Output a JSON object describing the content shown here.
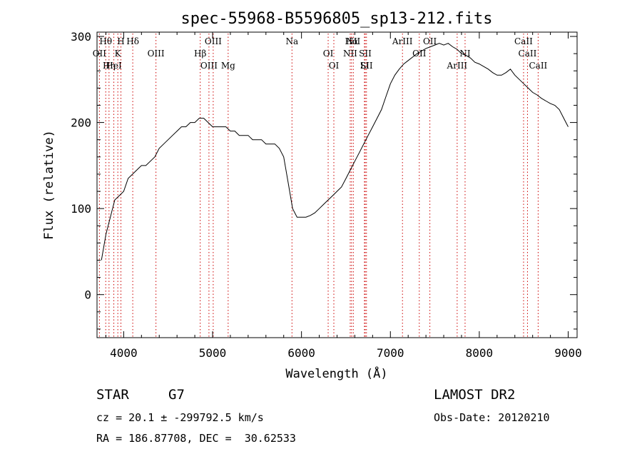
{
  "chart_data": {
    "type": "line",
    "title": "spec-55968-B5596805_sp13-212.fits",
    "xlabel": "Wavelength (Å)",
    "ylabel": "Flux (relative)",
    "xlim": [
      3700,
      9100
    ],
    "ylim": [
      -50,
      305
    ],
    "xticks": [
      4000,
      5000,
      6000,
      7000,
      8000,
      9000
    ],
    "yticks": [
      0,
      100,
      200,
      300
    ],
    "grid": false,
    "line_color": "#000000",
    "marker_color": "#cc0000",
    "series": [
      {
        "x": [
          3750,
          3800,
          3850,
          3900,
          3950,
          4000,
          4050,
          4100,
          4150,
          4200,
          4250,
          4300,
          4350,
          4400,
          4450,
          4500,
          4550,
          4600,
          4650,
          4700,
          4750,
          4800,
          4850,
          4900,
          4950,
          5000,
          5050,
          5100,
          5150,
          5200,
          5250,
          5300,
          5350,
          5400,
          5450,
          5500,
          5550,
          5600,
          5650,
          5700,
          5750,
          5800,
          5850,
          5900,
          5950,
          6000,
          6050,
          6100,
          6150,
          6200,
          6250,
          6300,
          6350,
          6400,
          6450,
          6500,
          6550,
          6600,
          6650,
          6700,
          6750,
          6800,
          6850,
          6900,
          6950,
          7000,
          7050,
          7100,
          7150,
          7200,
          7250,
          7300,
          7350,
          7400,
          7450,
          7500,
          7550,
          7600,
          7650,
          7700,
          7750,
          7800,
          7850,
          7900,
          7950,
          8000,
          8050,
          8100,
          8150,
          8200,
          8250,
          8300,
          8350,
          8400,
          8450,
          8500,
          8550,
          8600,
          8650,
          8700,
          8750,
          8800,
          8850,
          8900,
          8950,
          9000
        ],
        "y": [
          40,
          70,
          90,
          110,
          115,
          120,
          135,
          140,
          145,
          150,
          150,
          155,
          160,
          170,
          175,
          180,
          185,
          190,
          195,
          195,
          200,
          200,
          205,
          205,
          200,
          195,
          195,
          195,
          195,
          190,
          190,
          185,
          185,
          185,
          180,
          180,
          180,
          175,
          175,
          175,
          170,
          160,
          130,
          100,
          90,
          90,
          90,
          92,
          95,
          100,
          105,
          110,
          115,
          120,
          125,
          135,
          145,
          155,
          165,
          175,
          185,
          195,
          205,
          215,
          230,
          245,
          255,
          262,
          268,
          272,
          276,
          280,
          283,
          286,
          288,
          290,
          292,
          290,
          292,
          288,
          285,
          280,
          278,
          275,
          270,
          268,
          265,
          262,
          258,
          255,
          255,
          258,
          262,
          255,
          250,
          245,
          240,
          235,
          232,
          228,
          225,
          222,
          220,
          215,
          205,
          195
        ]
      }
    ],
    "lines": [
      {
        "label": "Hθ",
        "x": 3798
      },
      {
        "label": "K",
        "x": 3934
      },
      {
        "label": "HeI",
        "x": 3889
      },
      {
        "label": "Hδ",
        "x": 4102
      },
      {
        "label": "OII",
        "x": 3727
      },
      {
        "label": "Hη",
        "x": 3835
      },
      {
        "label": "H",
        "x": 3969
      },
      {
        "label": "OIII",
        "x": 4363
      },
      {
        "label": "OIII",
        "x": 4959
      },
      {
        "label": "OIII",
        "x": 5007
      },
      {
        "label": "Hβ",
        "x": 4861
      },
      {
        "label": "Mg",
        "x": 5175
      },
      {
        "label": "Na",
        "x": 5893
      },
      {
        "label": "OI",
        "x": 6300
      },
      {
        "label": "OI",
        "x": 6364
      },
      {
        "label": "Hα",
        "x": 6563
      },
      {
        "label": "NII",
        "x": 6548
      },
      {
        "label": "Li",
        "x": 6708
      },
      {
        "label": "NII",
        "x": 6583
      },
      {
        "label": "SII",
        "x": 6717
      },
      {
        "label": "SII",
        "x": 6731
      },
      {
        "label": "ArIII",
        "x": 7136
      },
      {
        "label": "OII",
        "x": 7325
      },
      {
        "label": "ArIII",
        "x": 7751
      },
      {
        "label": "CaII",
        "x": 8498
      },
      {
        "label": "CaII",
        "x": 8542
      },
      {
        "label": "CaII",
        "x": 8662
      },
      {
        "label": "OII",
        "x": 7444
      },
      {
        "label": "NI",
        "x": 7840
      }
    ]
  },
  "info": {
    "object_class": "STAR",
    "subclass": "G7",
    "survey": "LAMOST DR2",
    "obs_date": "Obs-Date: 20120210",
    "cz": "cz = 20.1 ± -299792.5 km/s",
    "coords": "RA = 186.87708, DEC =  30.62533"
  }
}
